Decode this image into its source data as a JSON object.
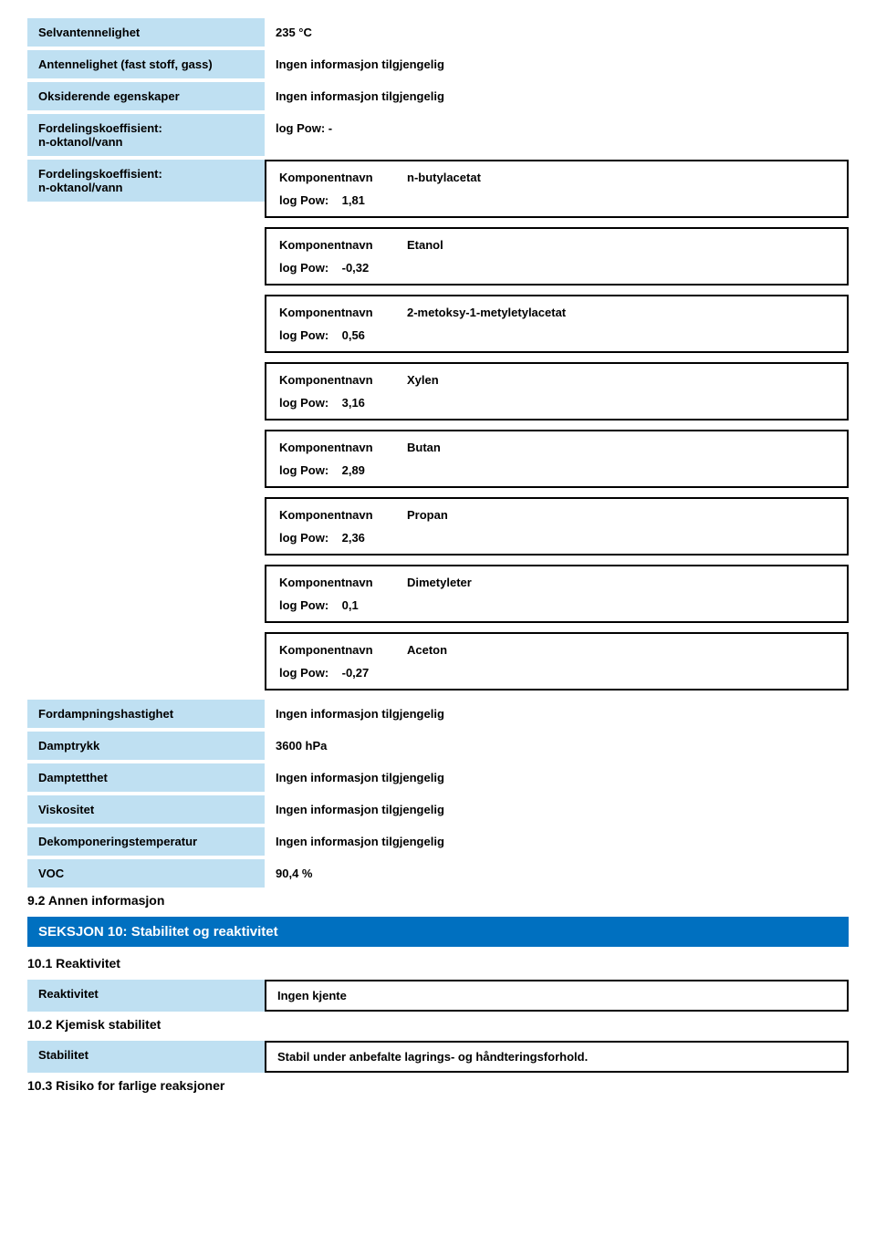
{
  "colors": {
    "label_bg": "#bfe0f2",
    "section_bg": "#0070c0",
    "section_fg": "#ffffff",
    "border": "#000000",
    "page_bg": "#ffffff",
    "text": "#000000"
  },
  "top_props": [
    {
      "label": "Selvantennelighet",
      "value": "235 °C"
    },
    {
      "label": "Antennelighet (fast stoff, gass)",
      "value": "Ingen informasjon tilgjengelig"
    },
    {
      "label": "Oksiderende egenskaper",
      "value": "Ingen informasjon tilgjengelig"
    },
    {
      "label": "Fordelingskoeffisient:\nn-oktanol/vann",
      "value": "log Pow:    -"
    }
  ],
  "partition_label": "Fordelingskoeffisient:\nn-oktanol/vann",
  "component_label": "Komponentnavn",
  "logpow_label": "log Pow:",
  "components": [
    {
      "name": "n-butylacetat",
      "logpow": "1,81"
    },
    {
      "name": "Etanol",
      "logpow": "-0,32"
    },
    {
      "name": "2-metoksy-1-metyletylacetat",
      "logpow": "0,56"
    },
    {
      "name": "Xylen",
      "logpow": "3,16"
    },
    {
      "name": "Butan",
      "logpow": "2,89"
    },
    {
      "name": "Propan",
      "logpow": "2,36"
    },
    {
      "name": "Dimetyleter",
      "logpow": "0,1"
    },
    {
      "name": "Aceton",
      "logpow": "-0,27"
    }
  ],
  "bottom_props": [
    {
      "label": "Fordampningshastighet",
      "value": "Ingen informasjon tilgjengelig"
    },
    {
      "label": "Damptrykk",
      "value": "3600 hPa"
    },
    {
      "label": "Damptetthet",
      "value": "Ingen informasjon tilgjengelig"
    },
    {
      "label": "Viskositet",
      "value": "Ingen informasjon tilgjengelig"
    },
    {
      "label": "Dekomponeringstemperatur",
      "value": "Ingen informasjon tilgjengelig"
    },
    {
      "label": "VOC",
      "value": "90,4 %"
    }
  ],
  "subheading_92": "9.2 Annen informasjon",
  "section10_title": "SEKSJON 10: Stabilitet og reaktivitet",
  "sec10_1_heading": "10.1 Reaktivitet",
  "reactivity_label": "Reaktivitet",
  "reactivity_value": "Ingen kjente",
  "sec10_2_heading": "10.2 Kjemisk stabilitet",
  "stability_label": "Stabilitet",
  "stability_value": "Stabil under anbefalte lagrings- og håndteringsforhold.",
  "sec10_3_heading": "10.3 Risiko for farlige reaksjoner"
}
